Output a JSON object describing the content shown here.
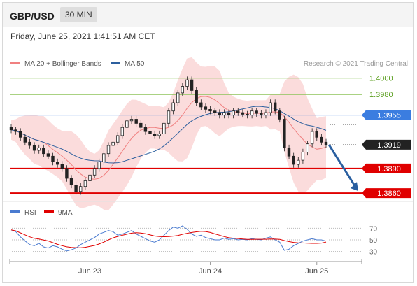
{
  "header": {
    "pair": "GBP/USD",
    "timeframe": "30 MIN"
  },
  "timestamp": "Friday, June 25, 2021 1:41:51 AM CET",
  "colors": {
    "bollinger": "#f08080",
    "ma50": "#2c5f9e",
    "price": "#222222",
    "resistance": "#8dc45a",
    "pivot": "#3b7de0",
    "support": "#e00000",
    "rsi": "#4a7bd0",
    "rsi_ma": "#e00000",
    "arrow": "#2a5fa0"
  },
  "chart_data": [
    {
      "type": "candlestick",
      "legend": [
        {
          "label": "MA 20 + Bollinger Bands",
          "color": "#f08080"
        },
        {
          "label": "MA 50",
          "color": "#2c5f9e"
        }
      ],
      "credit": "Research © 2021 Trading Central",
      "ylim": [
        1.3855,
        1.401
      ],
      "levels": [
        {
          "value": 1.4,
          "label": "1.4000",
          "kind": "resistance"
        },
        {
          "value": 1.398,
          "label": "1.3980",
          "kind": "resistance"
        },
        {
          "value": 1.3955,
          "label": "1.3955",
          "kind": "pivot"
        },
        {
          "value": 1.3919,
          "label": "1.3919",
          "kind": "last"
        },
        {
          "value": 1.389,
          "label": "1.3890",
          "kind": "support"
        },
        {
          "value": 1.386,
          "label": "1.3860",
          "kind": "support"
        }
      ],
      "close": [
        1.3937,
        1.3935,
        1.3928,
        1.3922,
        1.3918,
        1.3912,
        1.3915,
        1.3908,
        1.3905,
        1.3898,
        1.3895,
        1.389,
        1.3878,
        1.387,
        1.3862,
        1.3868,
        1.3875,
        1.3882,
        1.389,
        1.3898,
        1.3908,
        1.3918,
        1.3922,
        1.393,
        1.394,
        1.3948,
        1.395,
        1.3945,
        1.394,
        1.3935,
        1.3932,
        1.393,
        1.3932,
        1.3945,
        1.396,
        1.397,
        1.3982,
        1.399,
        1.3998,
        1.3985,
        1.397,
        1.3965,
        1.3962,
        1.396,
        1.3958,
        1.3955,
        1.3958,
        1.3955,
        1.396,
        1.3958,
        1.3956,
        1.3955,
        1.396,
        1.3957,
        1.3955,
        1.3958,
        1.397,
        1.396,
        1.395,
        1.3915,
        1.3905,
        1.3895,
        1.39,
        1.391,
        1.392,
        1.3935,
        1.3928,
        1.3922,
        1.3919
      ],
      "rsi": {
        "legend": [
          "RSI",
          "9MA"
        ],
        "ticks": [
          70,
          50,
          30
        ],
        "ylim": [
          20,
          80
        ],
        "values": [
          67,
          64,
          55,
          48,
          42,
          40,
          44,
          38,
          36,
          40,
          38,
          34,
          31,
          33,
          36,
          42,
          46,
          50,
          54,
          60,
          63,
          66,
          64,
          58,
          60,
          63,
          66,
          60,
          56,
          52,
          48,
          46,
          50,
          58,
          66,
          72,
          70,
          74,
          68,
          60,
          56,
          58,
          54,
          52,
          50,
          50,
          53,
          51,
          52,
          50,
          51,
          50,
          52,
          51,
          50,
          53,
          55,
          50,
          46,
          32,
          34,
          40,
          44,
          48,
          50,
          52,
          50,
          50,
          48
        ]
      },
      "xticks": [
        {
          "label": "Jun 23",
          "index": 17
        },
        {
          "label": "Jun 24",
          "index": 43
        },
        {
          "label": "Jun 25",
          "index": 66
        }
      ],
      "projection": {
        "from": 1.3919,
        "to": 1.386
      }
    }
  ]
}
